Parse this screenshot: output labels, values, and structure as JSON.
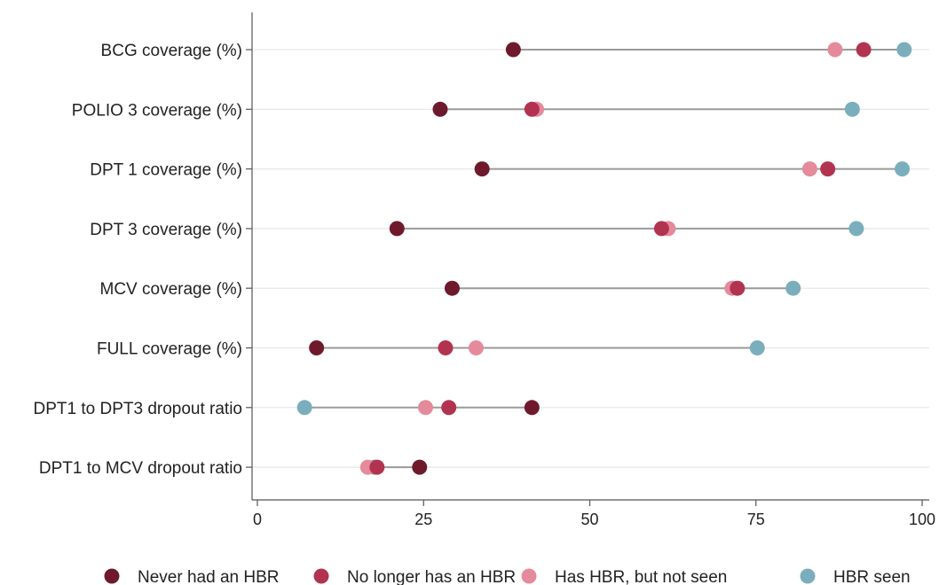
{
  "chart_data": {
    "type": "dot-range",
    "title": "",
    "xlabel": "",
    "ylabel": "",
    "xlim": [
      0,
      100
    ],
    "x_ticks": [
      0,
      25,
      50,
      75,
      100
    ],
    "x_tick_labels": [
      "0",
      "25",
      "50",
      "75",
      "100"
    ],
    "grid": "horizontal",
    "legend_position": "bottom",
    "categories": [
      "BCG coverage (%)",
      "POLIO 3 coverage (%)",
      "DPT 1 coverage (%)",
      "DPT 3 coverage (%)",
      "MCV coverage (%)",
      "FULL coverage (%)",
      "DPT1 to DPT3 dropout ratio",
      "DPT1 to MCV dropout ratio"
    ],
    "series": [
      {
        "name": "Never had an HBR",
        "color": "#6e1a2c",
        "values": [
          38.5,
          27.5,
          33.8,
          21.0,
          29.3,
          8.9,
          41.3,
          24.4
        ]
      },
      {
        "name": "No longer has an HBR",
        "color": "#b23350",
        "values": [
          91.2,
          41.3,
          85.8,
          60.8,
          72.2,
          28.3,
          28.8,
          18.0
        ]
      },
      {
        "name": "Has HBR, but not seen",
        "color": "#e58a9a",
        "values": [
          86.9,
          42.0,
          83.1,
          61.8,
          71.4,
          32.9,
          25.3,
          16.6
        ]
      },
      {
        "name": "HBR seen",
        "color": "#7aaebc",
        "values": [
          97.3,
          89.5,
          97.0,
          90.1,
          80.6,
          75.2,
          7.1,
          17.6
        ]
      }
    ],
    "line_color": "#9a9a9a",
    "grid_color": "#e6e6e6"
  }
}
